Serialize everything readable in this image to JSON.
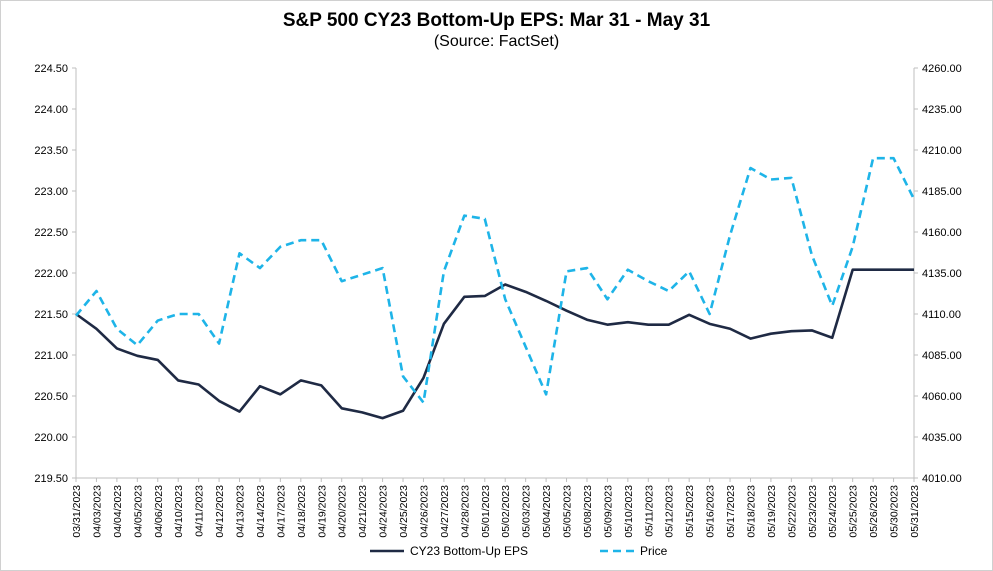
{
  "chart_data": {
    "type": "line",
    "title": "S&P 500 CY23 Bottom-Up EPS: Mar 31 - May 31",
    "subtitle": "(Source: FactSet)",
    "categories": [
      "03/31/2023",
      "04/03/2023",
      "04/04/2023",
      "04/05/2023",
      "04/06/2023",
      "04/10/2023",
      "04/11/2023",
      "04/12/2023",
      "04/13/2023",
      "04/14/2023",
      "04/17/2023",
      "04/18/2023",
      "04/19/2023",
      "04/20/2023",
      "04/21/2023",
      "04/24/2023",
      "04/25/2023",
      "04/26/2023",
      "04/27/2023",
      "04/28/2023",
      "05/01/2023",
      "05/02/2023",
      "05/03/2023",
      "05/04/2023",
      "05/05/2023",
      "05/08/2023",
      "05/09/2023",
      "05/10/2023",
      "05/11/2023",
      "05/12/2023",
      "05/15/2023",
      "05/16/2023",
      "05/17/2023",
      "05/18/2023",
      "05/19/2023",
      "05/22/2023",
      "05/23/2023",
      "05/24/2023",
      "05/25/2023",
      "05/26/2023",
      "05/30/2023",
      "05/31/2023"
    ],
    "y_left": {
      "min": 219.5,
      "max": 224.5,
      "step": 0.5,
      "tick_labels": [
        "219.50",
        "220.00",
        "220.50",
        "221.00",
        "221.50",
        "222.00",
        "222.50",
        "223.00",
        "223.50",
        "224.00",
        "224.50"
      ]
    },
    "y_right": {
      "min": 4010,
      "max": 4260,
      "step": 25,
      "tick_labels": [
        "4010.00",
        "4035.00",
        "4060.00",
        "4085.00",
        "4110.00",
        "4135.00",
        "4160.00",
        "4185.00",
        "4210.00",
        "4235.00",
        "4260.00"
      ]
    },
    "series": [
      {
        "name": "CY23 Bottom-Up EPS",
        "axis": "left",
        "color": "#1f2a44",
        "style": "solid",
        "values": [
          221.5,
          221.32,
          221.08,
          220.99,
          220.94,
          220.69,
          220.64,
          220.44,
          220.31,
          220.62,
          220.52,
          220.69,
          220.63,
          220.35,
          220.3,
          220.23,
          220.32,
          220.72,
          221.38,
          221.71,
          221.72,
          221.86,
          221.77,
          221.66,
          221.54,
          221.43,
          221.37,
          221.4,
          221.37,
          221.37,
          221.49,
          221.38,
          221.32,
          221.2,
          221.26,
          221.29,
          221.3,
          221.21,
          222.04,
          222.04,
          222.04,
          222.04
        ]
      },
      {
        "name": "Price",
        "axis": "right",
        "color": "#1eb4e8",
        "style": "dashed",
        "values": [
          4109,
          4124,
          4101,
          4091,
          4106,
          4110,
          4110,
          4092,
          4147,
          4138,
          4151,
          4155,
          4155,
          4130,
          4134,
          4138,
          4072,
          4056,
          4136,
          4170,
          4168,
          4119,
          4090,
          4061,
          4136,
          4138,
          4119,
          4137,
          4130,
          4124,
          4136,
          4110,
          4158,
          4199,
          4192,
          4193,
          4146,
          4115,
          4151,
          4205,
          4205,
          4180
        ]
      }
    ],
    "legend": {
      "position": "bottom"
    },
    "grid": false
  }
}
